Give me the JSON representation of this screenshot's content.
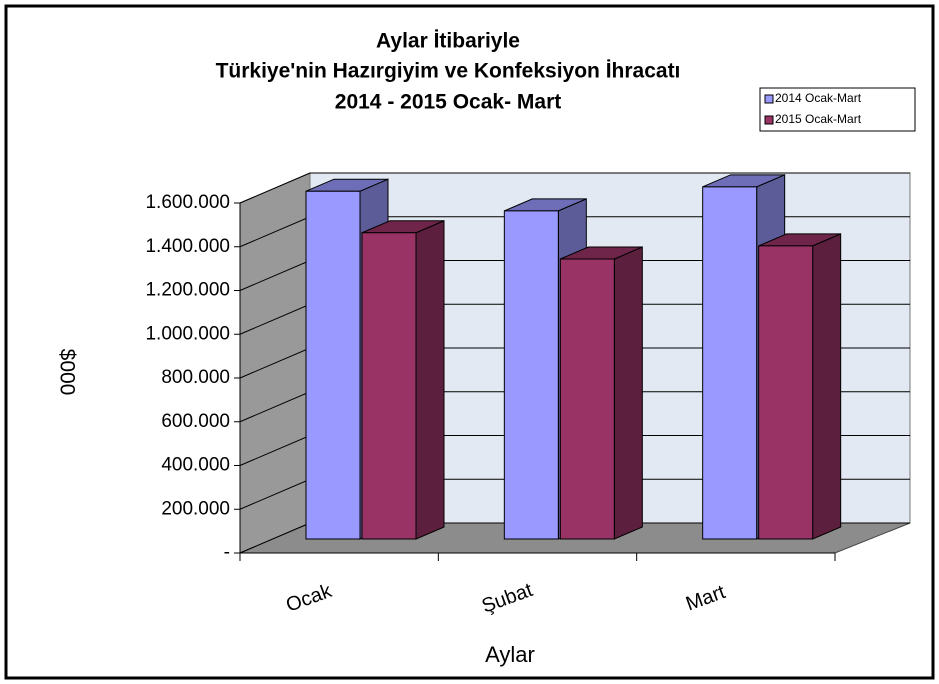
{
  "chart_data": {
    "type": "bar3d",
    "title": [
      "Aylar İtibariyle",
      "Türkiye'nin Hazırgiyim ve Konfeksiyon İhracatı",
      "2014 - 2015 Ocak- Mart"
    ],
    "x_label": "Aylar",
    "y_label": "$000",
    "categories": [
      "Ocak",
      "Şubat",
      "Mart"
    ],
    "series": [
      {
        "name": "2014 Ocak-Mart",
        "color": "#9999ff",
        "values": [
          1590000,
          1500000,
          1610000
        ]
      },
      {
        "name": "2015 Ocak-Mart",
        "color": "#993366",
        "values": [
          1400000,
          1280000,
          1340000
        ]
      }
    ],
    "ylim": [
      0,
      1600000
    ],
    "yticks": [
      {
        "value": 0,
        "label": "-"
      },
      {
        "value": 200000,
        "label": "200.000"
      },
      {
        "value": 400000,
        "label": "400.000"
      },
      {
        "value": 600000,
        "label": "600.000"
      },
      {
        "value": 800000,
        "label": "800.000"
      },
      {
        "value": 1000000,
        "label": "1.000.000"
      },
      {
        "value": 1200000,
        "label": "1.200.000"
      },
      {
        "value": 1400000,
        "label": "1.400.000"
      },
      {
        "value": 1600000,
        "label": "1.600.000"
      }
    ],
    "grid": true,
    "legend": "top-right"
  }
}
